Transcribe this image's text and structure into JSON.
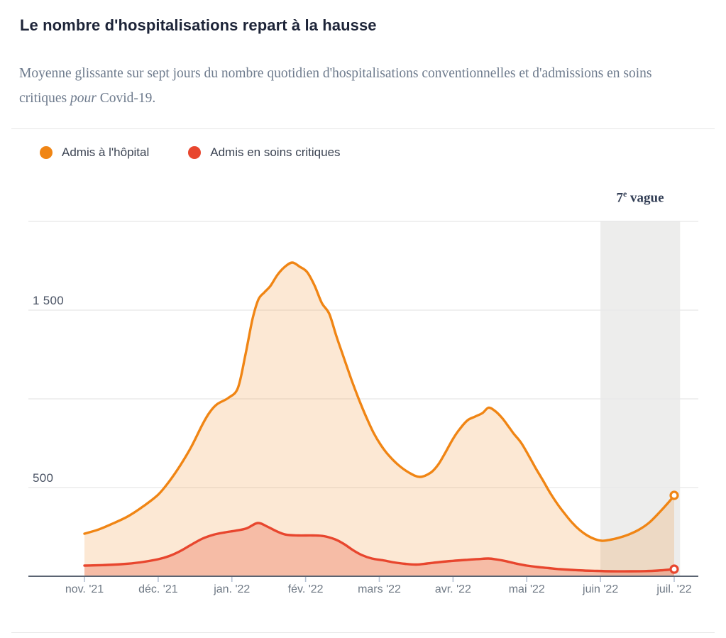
{
  "header": {
    "title": "Le nombre d'hospitalisations repart à la hausse",
    "subtitle_parts": [
      "Moyenne glissante sur sept jours du nombre quotidien d'hospitalisations conventionnelles et d'admissions en soins critiques ",
      "pour",
      " Covid-19."
    ]
  },
  "legend": {
    "items": [
      {
        "label": "Admis à l'hôpital",
        "color": "#f08514"
      },
      {
        "label": "Admis en soins critiques",
        "color": "#e8462e"
      }
    ]
  },
  "annotation": {
    "prefix": "7",
    "sup": "e",
    "suffix": " vague"
  },
  "chart_data": {
    "type": "area",
    "title": "Le nombre d'hospitalisations repart à la hausse",
    "x_unit": "months since 2021-11-01",
    "xlim": [
      0,
      8
    ],
    "ylim": [
      0,
      2000
    ],
    "grid": true,
    "y_gridlines": [
      500,
      1000,
      1500,
      2000
    ],
    "y_axis_labels": [
      {
        "value": 1500,
        "label": "1 500"
      },
      {
        "value": 500,
        "label": "500"
      }
    ],
    "x_ticks": [
      {
        "m": 0,
        "label": "nov. '21"
      },
      {
        "m": 1,
        "label": "déc. '21"
      },
      {
        "m": 2,
        "label": "jan. '22"
      },
      {
        "m": 3,
        "label": "fév. '22"
      },
      {
        "m": 4,
        "label": "mars '22"
      },
      {
        "m": 5,
        "label": "avr. '22"
      },
      {
        "m": 6,
        "label": "mai '22"
      },
      {
        "m": 7,
        "label": "juin '22"
      },
      {
        "m": 8,
        "label": "juil. '22"
      }
    ],
    "band": {
      "label": "7e vague",
      "start_m": 7.0,
      "end_m": 8.08,
      "color": "#ededec"
    },
    "series": [
      {
        "name": "Admis à l'hôpital",
        "color": "#f08514",
        "fill": "rgba(242,140,40,0.20)",
        "end_marker": true,
        "points": [
          [
            0.0,
            240
          ],
          [
            0.2,
            265
          ],
          [
            0.4,
            300
          ],
          [
            0.6,
            340
          ],
          [
            0.8,
            395
          ],
          [
            1.0,
            460
          ],
          [
            1.15,
            535
          ],
          [
            1.3,
            625
          ],
          [
            1.45,
            730
          ],
          [
            1.6,
            855
          ],
          [
            1.7,
            925
          ],
          [
            1.8,
            970
          ],
          [
            1.95,
            1005
          ],
          [
            2.08,
            1060
          ],
          [
            2.18,
            1240
          ],
          [
            2.28,
            1450
          ],
          [
            2.36,
            1560
          ],
          [
            2.44,
            1600
          ],
          [
            2.52,
            1635
          ],
          [
            2.62,
            1700
          ],
          [
            2.72,
            1745
          ],
          [
            2.82,
            1768
          ],
          [
            2.92,
            1745
          ],
          [
            3.02,
            1715
          ],
          [
            3.12,
            1640
          ],
          [
            3.22,
            1540
          ],
          [
            3.32,
            1480
          ],
          [
            3.42,
            1350
          ],
          [
            3.52,
            1230
          ],
          [
            3.62,
            1110
          ],
          [
            3.72,
            1000
          ],
          [
            3.82,
            900
          ],
          [
            3.92,
            810
          ],
          [
            4.02,
            740
          ],
          [
            4.12,
            685
          ],
          [
            4.25,
            630
          ],
          [
            4.4,
            585
          ],
          [
            4.55,
            560
          ],
          [
            4.7,
            585
          ],
          [
            4.8,
            630
          ],
          [
            4.9,
            700
          ],
          [
            5.0,
            775
          ],
          [
            5.1,
            835
          ],
          [
            5.2,
            880
          ],
          [
            5.3,
            900
          ],
          [
            5.4,
            920
          ],
          [
            5.48,
            950
          ],
          [
            5.56,
            935
          ],
          [
            5.66,
            895
          ],
          [
            5.76,
            840
          ],
          [
            5.82,
            805
          ],
          [
            5.92,
            755
          ],
          [
            6.02,
            685
          ],
          [
            6.12,
            610
          ],
          [
            6.22,
            540
          ],
          [
            6.32,
            468
          ],
          [
            6.42,
            405
          ],
          [
            6.52,
            350
          ],
          [
            6.62,
            300
          ],
          [
            6.72,
            260
          ],
          [
            6.82,
            230
          ],
          [
            6.92,
            210
          ],
          [
            7.02,
            200
          ],
          [
            7.12,
            205
          ],
          [
            7.24,
            216
          ],
          [
            7.38,
            235
          ],
          [
            7.52,
            262
          ],
          [
            7.66,
            302
          ],
          [
            7.8,
            360
          ],
          [
            7.92,
            415
          ],
          [
            8.0,
            456
          ]
        ]
      },
      {
        "name": "Admis en soins critiques",
        "color": "#e8462e",
        "fill": "rgba(231,76,48,0.28)",
        "end_marker": true,
        "points": [
          [
            0.0,
            60
          ],
          [
            0.25,
            63
          ],
          [
            0.5,
            68
          ],
          [
            0.75,
            78
          ],
          [
            1.0,
            96
          ],
          [
            1.15,
            114
          ],
          [
            1.3,
            142
          ],
          [
            1.45,
            178
          ],
          [
            1.6,
            212
          ],
          [
            1.75,
            234
          ],
          [
            1.9,
            247
          ],
          [
            2.05,
            257
          ],
          [
            2.2,
            270
          ],
          [
            2.35,
            300
          ],
          [
            2.48,
            280
          ],
          [
            2.6,
            255
          ],
          [
            2.73,
            235
          ],
          [
            2.9,
            230
          ],
          [
            3.1,
            230
          ],
          [
            3.25,
            226
          ],
          [
            3.4,
            208
          ],
          [
            3.52,
            182
          ],
          [
            3.64,
            148
          ],
          [
            3.76,
            120
          ],
          [
            3.9,
            100
          ],
          [
            4.05,
            90
          ],
          [
            4.2,
            78
          ],
          [
            4.35,
            70
          ],
          [
            4.5,
            66
          ],
          [
            4.65,
            72
          ],
          [
            4.82,
            80
          ],
          [
            5.0,
            87
          ],
          [
            5.2,
            93
          ],
          [
            5.35,
            97
          ],
          [
            5.48,
            100
          ],
          [
            5.6,
            94
          ],
          [
            5.72,
            85
          ],
          [
            5.85,
            72
          ],
          [
            6.0,
            60
          ],
          [
            6.15,
            52
          ],
          [
            6.3,
            46
          ],
          [
            6.45,
            40
          ],
          [
            6.6,
            36
          ],
          [
            6.78,
            32
          ],
          [
            6.95,
            30
          ],
          [
            7.15,
            28
          ],
          [
            7.4,
            28
          ],
          [
            7.6,
            29
          ],
          [
            7.78,
            32
          ],
          [
            7.9,
            36
          ],
          [
            8.0,
            40
          ]
        ]
      }
    ],
    "style": {
      "grid_color": "#e8e8e8",
      "axis_color": "#5b6472",
      "tick_color": "#b6c2d4"
    }
  }
}
